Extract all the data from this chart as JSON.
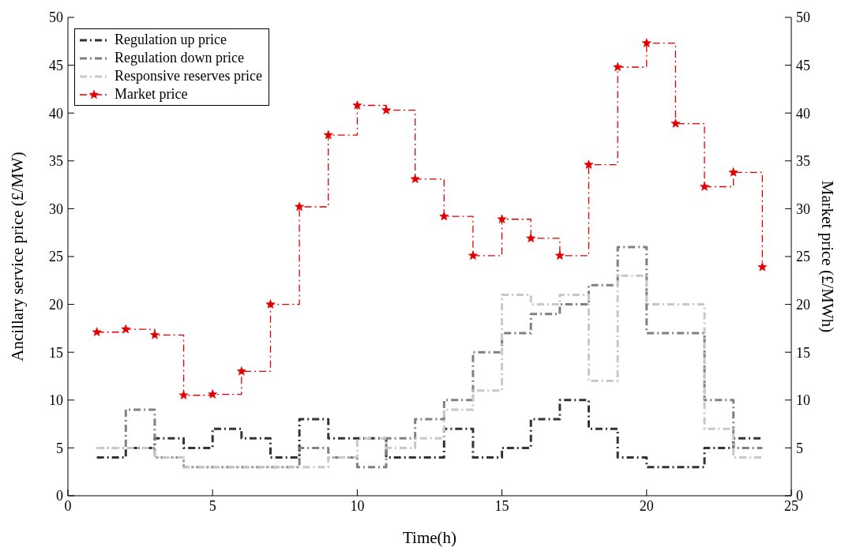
{
  "chart_data": {
    "type": "step",
    "xlabel": "Time(h)",
    "ylabel": "Ancillary service price (£/MW)",
    "y2label": "Market price (£/MWh)",
    "x": [
      1,
      2,
      3,
      4,
      5,
      6,
      7,
      8,
      9,
      10,
      11,
      12,
      13,
      14,
      15,
      16,
      17,
      18,
      19,
      20,
      21,
      22,
      23,
      24
    ],
    "series": [
      {
        "name": "Regulation up price",
        "color": "#333333",
        "line_style": "dashed",
        "marker": "none",
        "values": [
          4,
          5,
          6,
          5,
          7,
          6,
          4,
          8,
          6,
          6,
          4,
          4,
          7,
          4,
          5,
          8,
          10,
          7,
          4,
          3,
          3,
          5,
          6,
          6
        ]
      },
      {
        "name": "Regulation down price",
        "color": "#808080",
        "line_style": "dashed",
        "marker": "none",
        "values": [
          5,
          9,
          4,
          3,
          3,
          3,
          3,
          5,
          4,
          3,
          6,
          8,
          10,
          15,
          17,
          19,
          20,
          22,
          26,
          17,
          17,
          10,
          5,
          5
        ]
      },
      {
        "name": "Responsive reserves price",
        "color": "#c8c8c8",
        "line_style": "dashed",
        "marker": "none",
        "values": [
          5,
          5,
          4,
          3,
          3,
          3,
          3,
          3,
          4,
          6,
          5,
          6,
          9,
          11,
          21,
          20,
          21,
          12,
          23,
          20,
          20,
          7,
          4,
          4
        ]
      },
      {
        "name": "Market price",
        "color": "#e00000",
        "line_style": "dashed",
        "marker": "star",
        "axis": "y2",
        "values": [
          17.1,
          17.4,
          16.8,
          10.5,
          10.6,
          13,
          20,
          30.2,
          37.7,
          40.8,
          40.3,
          33.1,
          29.2,
          25.1,
          28.9,
          26.9,
          25.1,
          34.6,
          44.8,
          47.3,
          38.9,
          32.3,
          33.8,
          23.9
        ]
      }
    ],
    "xlim": [
      0,
      25
    ],
    "xticks": [
      0,
      5,
      10,
      15,
      20,
      25
    ],
    "ylim": [
      0,
      50
    ],
    "yticks": [
      0,
      5,
      10,
      15,
      20,
      25,
      30,
      35,
      40,
      45,
      50
    ],
    "y2lim": [
      0,
      50
    ],
    "y2ticks": [
      0,
      5,
      10,
      15,
      20,
      25,
      30,
      35,
      40,
      45,
      50
    ],
    "grid": false,
    "legend": "top left"
  }
}
